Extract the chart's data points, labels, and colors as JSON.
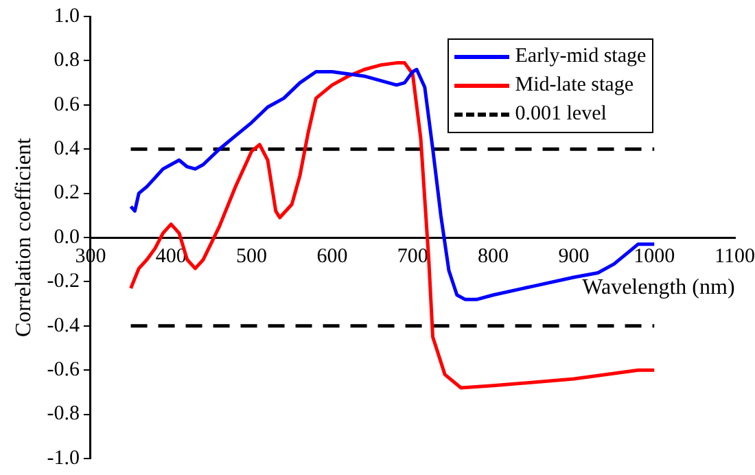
{
  "chart_data": {
    "type": "line",
    "xlabel": "Wavelength (nm)",
    "ylabel": "Correlation coefficient",
    "xlim": [
      300,
      1100
    ],
    "xticks": [
      300,
      400,
      500,
      600,
      700,
      800,
      900,
      1000,
      1100
    ],
    "ylim": [
      -1.0,
      1.0
    ],
    "yticks": [
      {
        "value": -1,
        "label": "-1.0"
      },
      {
        "value": -0.8,
        "label": "-0.8"
      },
      {
        "value": -0.6,
        "label": "-0.6"
      },
      {
        "value": -0.4,
        "label": "-0.4"
      },
      {
        "value": -0.2,
        "label": "-0.2"
      },
      {
        "value": 0,
        "label": "0.0"
      },
      {
        "value": 0.2,
        "label": "0.2"
      },
      {
        "value": 0.4,
        "label": "0.4"
      },
      {
        "value": 0.6,
        "label": "0.6"
      },
      {
        "value": 0.8,
        "label": "0.8"
      },
      {
        "value": 1,
        "label": "1.0"
      }
    ],
    "grid": false,
    "legend": "top right",
    "marker": "none",
    "line_style": "solid",
    "series": [
      {
        "name": "Early-mid stage",
        "color": "#0000ff",
        "x": [
          350,
          355,
          360,
          370,
          380,
          390,
          400,
          410,
          420,
          430,
          440,
          460,
          480,
          500,
          520,
          540,
          560,
          580,
          600,
          620,
          640,
          660,
          680,
          690,
          700,
          705,
          715,
          725,
          735,
          745,
          755,
          765,
          780,
          800,
          850,
          900,
          930,
          950,
          970,
          980,
          1000
        ],
        "values": [
          0.14,
          0.12,
          0.2,
          0.23,
          0.27,
          0.31,
          0.33,
          0.35,
          0.32,
          0.31,
          0.33,
          0.4,
          0.46,
          0.52,
          0.59,
          0.63,
          0.7,
          0.75,
          0.75,
          0.74,
          0.73,
          0.71,
          0.69,
          0.7,
          0.75,
          0.76,
          0.68,
          0.4,
          0.1,
          -0.15,
          -0.26,
          -0.28,
          -0.28,
          -0.26,
          -0.22,
          -0.18,
          -0.16,
          -0.12,
          -0.06,
          -0.03,
          -0.03
        ]
      },
      {
        "name": "Mid-late stage",
        "color": "#ff0000",
        "x": [
          350,
          360,
          370,
          380,
          390,
          400,
          410,
          420,
          430,
          440,
          460,
          480,
          500,
          510,
          520,
          530,
          535,
          550,
          560,
          570,
          580,
          600,
          620,
          640,
          660,
          680,
          690,
          700,
          710,
          720,
          725,
          740,
          760,
          800,
          900,
          980,
          1000
        ],
        "values": [
          -0.23,
          -0.14,
          -0.1,
          -0.05,
          0.02,
          0.06,
          0.02,
          -0.1,
          -0.14,
          -0.1,
          0.05,
          0.23,
          0.39,
          0.42,
          0.35,
          0.12,
          0.09,
          0.15,
          0.28,
          0.47,
          0.63,
          0.69,
          0.73,
          0.76,
          0.78,
          0.79,
          0.79,
          0.74,
          0.45,
          -0.1,
          -0.45,
          -0.62,
          -0.68,
          -0.67,
          -0.64,
          -0.6,
          -0.6
        ]
      }
    ],
    "ref_lines": [
      {
        "axis": "y",
        "value": 0.4,
        "label": "0.001 level",
        "color": "#000000",
        "line_style": "dashed"
      },
      {
        "axis": "y",
        "value": -0.4,
        "color": "#000000",
        "line_style": "dashed"
      }
    ]
  }
}
